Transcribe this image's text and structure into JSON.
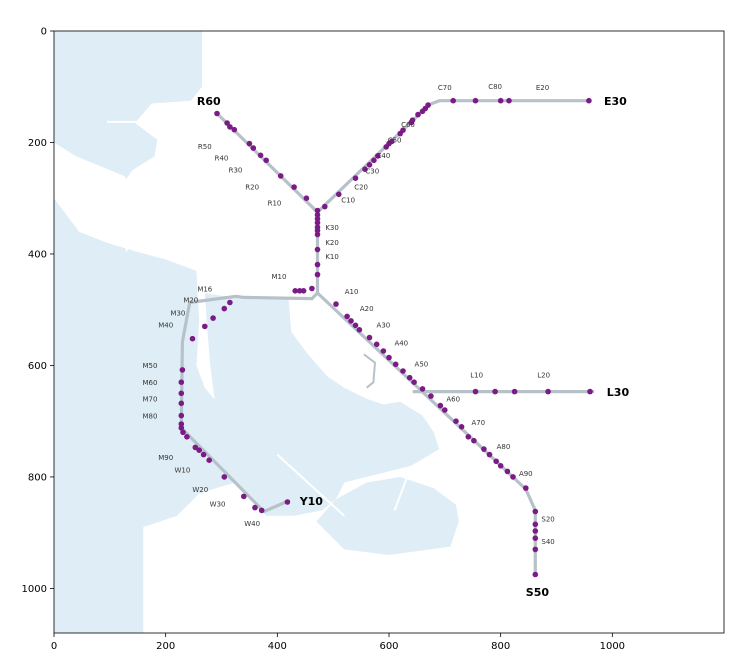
{
  "axes": {
    "x_ticks": [
      0,
      200,
      400,
      600,
      800,
      1000
    ],
    "y_ticks": [
      0,
      200,
      400,
      600,
      800,
      1000
    ],
    "xlim": [
      0,
      1200
    ],
    "ylim": [
      1080,
      0
    ]
  },
  "colors": {
    "water": "#dfeef6",
    "track": "#b7c1c9",
    "station": "#7a1b86",
    "leader": "#c7cdd2"
  },
  "lines": [
    {
      "name": "north-west-branch",
      "path": [
        [
          292,
          148
        ],
        [
          472,
          325
        ]
      ]
    },
    {
      "name": "north-east-branch",
      "path": [
        [
          472,
          325
        ],
        [
          672,
          132
        ],
        [
          690,
          125
        ],
        [
          960,
          125
        ]
      ]
    },
    {
      "name": "trunk",
      "path": [
        [
          472,
          325
        ],
        [
          472,
          470
        ],
        [
          462,
          480
        ]
      ]
    },
    {
      "name": "west-loop",
      "path": [
        [
          462,
          480
        ],
        [
          340,
          478
        ],
        [
          326,
          476
        ],
        [
          243,
          487
        ],
        [
          230,
          558
        ],
        [
          228,
          712
        ],
        [
          376,
          862
        ],
        [
          420,
          843
        ]
      ]
    },
    {
      "name": "south-east-branch",
      "path": [
        [
          472,
          470
        ],
        [
          845,
          822
        ],
        [
          862,
          860
        ],
        [
          862,
          975
        ]
      ]
    },
    {
      "name": "l-branch",
      "path": [
        [
          645,
          647
        ],
        [
          965,
          647
        ]
      ]
    }
  ],
  "stations": [
    [
      292,
      148
    ],
    [
      310,
      165
    ],
    [
      315,
      172
    ],
    [
      323,
      177
    ],
    [
      350,
      202
    ],
    [
      357,
      210
    ],
    [
      370,
      223
    ],
    [
      380,
      232
    ],
    [
      406,
      260
    ],
    [
      430,
      280
    ],
    [
      452,
      300
    ],
    [
      472,
      322
    ],
    [
      472,
      330
    ],
    [
      472,
      337
    ],
    [
      472,
      344
    ],
    [
      472,
      352
    ],
    [
      472,
      358
    ],
    [
      472,
      365
    ],
    [
      472,
      392
    ],
    [
      472,
      419
    ],
    [
      472,
      437
    ],
    [
      462,
      462
    ],
    [
      485,
      315
    ],
    [
      510,
      293
    ],
    [
      540,
      264
    ],
    [
      557,
      248
    ],
    [
      565,
      240
    ],
    [
      573,
      232
    ],
    [
      580,
      224
    ],
    [
      595,
      208
    ],
    [
      600,
      202
    ],
    [
      605,
      198
    ],
    [
      620,
      184
    ],
    [
      625,
      178
    ],
    [
      640,
      164
    ],
    [
      642,
      160
    ],
    [
      652,
      150
    ],
    [
      660,
      144
    ],
    [
      665,
      139
    ],
    [
      670,
      133
    ],
    [
      715,
      125
    ],
    [
      755,
      125
    ],
    [
      800,
      125
    ],
    [
      815,
      125
    ],
    [
      958,
      125
    ],
    [
      432,
      466
    ],
    [
      440,
      466
    ],
    [
      447,
      466
    ],
    [
      505,
      490
    ],
    [
      525,
      512
    ],
    [
      532,
      520
    ],
    [
      540,
      528
    ],
    [
      547,
      536
    ],
    [
      565,
      550
    ],
    [
      578,
      562
    ],
    [
      590,
      574
    ],
    [
      600,
      586
    ],
    [
      612,
      598
    ],
    [
      625,
      610
    ],
    [
      637,
      622
    ],
    [
      645,
      630
    ],
    [
      660,
      642
    ],
    [
      675,
      655
    ],
    [
      692,
      672
    ],
    [
      700,
      680
    ],
    [
      720,
      700
    ],
    [
      730,
      710
    ],
    [
      742,
      728
    ],
    [
      752,
      735
    ],
    [
      770,
      750
    ],
    [
      780,
      760
    ],
    [
      792,
      772
    ],
    [
      800,
      780
    ],
    [
      812,
      790
    ],
    [
      822,
      800
    ],
    [
      845,
      820
    ],
    [
      862,
      862
    ],
    [
      862,
      885
    ],
    [
      862,
      897
    ],
    [
      862,
      910
    ],
    [
      862,
      930
    ],
    [
      862,
      975
    ],
    [
      755,
      647
    ],
    [
      790,
      647
    ],
    [
      825,
      647
    ],
    [
      885,
      647
    ],
    [
      960,
      647
    ],
    [
      315,
      487
    ],
    [
      305,
      498
    ],
    [
      285,
      515
    ],
    [
      270,
      530
    ],
    [
      248,
      552
    ],
    [
      230,
      608
    ],
    [
      228,
      630
    ],
    [
      228,
      650
    ],
    [
      228,
      668
    ],
    [
      228,
      690
    ],
    [
      228,
      705
    ],
    [
      228,
      712
    ],
    [
      231,
      720
    ],
    [
      238,
      728
    ],
    [
      253,
      747
    ],
    [
      260,
      752
    ],
    [
      268,
      760
    ],
    [
      278,
      770
    ],
    [
      305,
      800
    ],
    [
      340,
      835
    ],
    [
      360,
      855
    ],
    [
      372,
      860
    ],
    [
      418,
      845
    ]
  ],
  "station_labels": [
    {
      "text": "R50",
      "x": 270,
      "y": 212
    },
    {
      "text": "R40",
      "x": 300,
      "y": 232
    },
    {
      "text": "R30",
      "x": 325,
      "y": 254
    },
    {
      "text": "R20",
      "x": 355,
      "y": 284
    },
    {
      "text": "R10",
      "x": 395,
      "y": 313
    },
    {
      "text": "K30",
      "x": 498,
      "y": 357
    },
    {
      "text": "K20",
      "x": 498,
      "y": 384
    },
    {
      "text": "K10",
      "x": 498,
      "y": 409
    },
    {
      "text": "M10",
      "x": 403,
      "y": 445
    },
    {
      "text": "C10",
      "x": 527,
      "y": 308
    },
    {
      "text": "C20",
      "x": 550,
      "y": 284
    },
    {
      "text": "C30",
      "x": 570,
      "y": 256
    },
    {
      "text": "C40",
      "x": 590,
      "y": 228
    },
    {
      "text": "C50",
      "x": 610,
      "y": 200
    },
    {
      "text": "C60",
      "x": 634,
      "y": 172
    },
    {
      "text": "C70",
      "x": 700,
      "y": 106
    },
    {
      "text": "C80",
      "x": 790,
      "y": 104
    },
    {
      "text": "E20",
      "x": 875,
      "y": 106
    },
    {
      "text": "A10",
      "x": 533,
      "y": 472
    },
    {
      "text": "A20",
      "x": 560,
      "y": 502
    },
    {
      "text": "A30",
      "x": 590,
      "y": 532
    },
    {
      "text": "A40",
      "x": 622,
      "y": 564
    },
    {
      "text": "A50",
      "x": 658,
      "y": 602
    },
    {
      "text": "A60",
      "x": 715,
      "y": 665
    },
    {
      "text": "A70",
      "x": 760,
      "y": 707
    },
    {
      "text": "A80",
      "x": 805,
      "y": 750
    },
    {
      "text": "A90",
      "x": 845,
      "y": 798
    },
    {
      "text": "L10",
      "x": 757,
      "y": 622
    },
    {
      "text": "L20",
      "x": 877,
      "y": 622
    },
    {
      "text": "S20",
      "x": 885,
      "y": 880
    },
    {
      "text": "S40",
      "x": 885,
      "y": 920
    },
    {
      "text": "M16",
      "x": 270,
      "y": 467
    },
    {
      "text": "M20",
      "x": 245,
      "y": 487
    },
    {
      "text": "M30",
      "x": 222,
      "y": 510
    },
    {
      "text": "M40",
      "x": 200,
      "y": 532
    },
    {
      "text": "M50",
      "x": 172,
      "y": 605
    },
    {
      "text": "M60",
      "x": 172,
      "y": 635
    },
    {
      "text": "M70",
      "x": 172,
      "y": 665
    },
    {
      "text": "M80",
      "x": 172,
      "y": 695
    },
    {
      "text": "M90",
      "x": 200,
      "y": 770
    },
    {
      "text": "W10",
      "x": 230,
      "y": 792
    },
    {
      "text": "W20",
      "x": 262,
      "y": 827
    },
    {
      "text": "W30",
      "x": 293,
      "y": 853
    },
    {
      "text": "W40",
      "x": 355,
      "y": 888
    }
  ],
  "terminal_labels": [
    {
      "text": "R60",
      "x": 256,
      "y": 133
    },
    {
      "text": "E30",
      "x": 985,
      "y": 133
    },
    {
      "text": "L30",
      "x": 990,
      "y": 655
    },
    {
      "text": "Y10",
      "x": 440,
      "y": 850
    },
    {
      "text": "S50",
      "x": 845,
      "y": 1014
    }
  ]
}
